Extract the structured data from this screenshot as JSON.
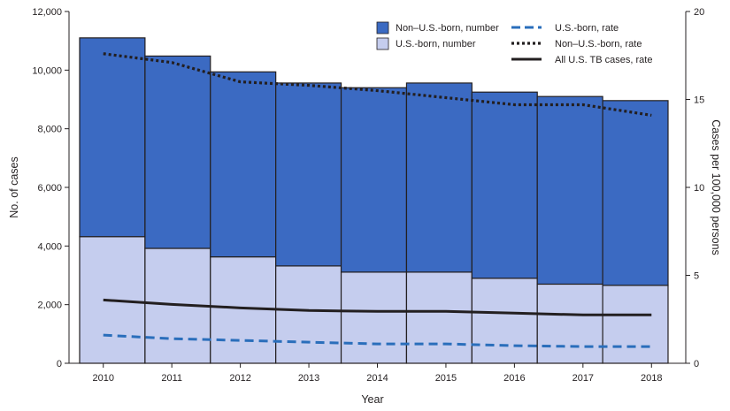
{
  "chart_data": {
    "type": "bar",
    "stacked": true,
    "grid": false,
    "legend_position": "top-right",
    "xlabel": "Year",
    "ylabel": "No. of cases",
    "y2label": "Cases per 100,000 persons",
    "ylim": [
      0,
      12000
    ],
    "y2lim": [
      0,
      20
    ],
    "categories": [
      "2010",
      "2011",
      "2012",
      "2013",
      "2014",
      "2015",
      "2016",
      "2017",
      "2018"
    ],
    "yticks": [
      "0",
      "2,000",
      "4,000",
      "6,000",
      "8,000",
      "10,000",
      "12,000"
    ],
    "y2ticks": [
      "0",
      "5",
      "10",
      "15",
      "20"
    ],
    "bar_series": [
      {
        "name": "U.S.-born, number",
        "color": "#c5cdee",
        "values": [
          4320,
          3920,
          3630,
          3320,
          3110,
          3110,
          2900,
          2700,
          2660
        ]
      },
      {
        "name": "Non–U.S.-born, number",
        "color": "#3b6ac2",
        "values": [
          6780,
          6560,
          6310,
          6240,
          6290,
          6450,
          6350,
          6400,
          6300
        ]
      }
    ],
    "line_series": [
      {
        "name": "U.S.-born, rate",
        "style": "dashed",
        "color": "#2a6ebb",
        "values": [
          1.6,
          1.4,
          1.3,
          1.2,
          1.1,
          1.1,
          1.0,
          0.95,
          0.95
        ]
      },
      {
        "name": "Non–U.S.-born, rate",
        "style": "dotted",
        "color": "#231f20",
        "values": [
          17.6,
          17.1,
          16.0,
          15.8,
          15.5,
          15.1,
          14.7,
          14.7,
          14.1
        ]
      },
      {
        "name": "All U.S. TB cases, rate",
        "style": "solid",
        "color": "#231f20",
        "values": [
          3.6,
          3.35,
          3.15,
          3.0,
          2.95,
          2.95,
          2.85,
          2.75,
          2.75
        ]
      }
    ]
  }
}
